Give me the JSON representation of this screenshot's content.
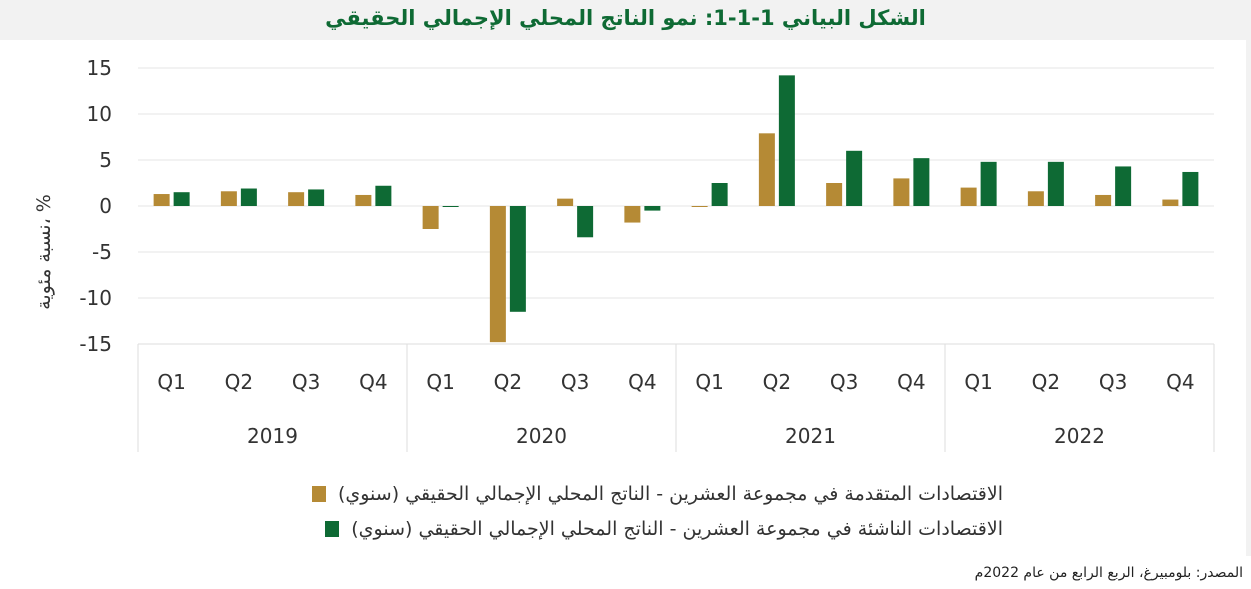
{
  "title": "الشكل البياني 1-1-1: نمو الناتج المحلي الإجمالي الحقيقي",
  "source": "المصدر: بلومبيرغ، الربع الرابع من عام 2022م",
  "colors": {
    "advanced": "#b58a35",
    "emerging": "#0e6a34",
    "title": "#0e6a34"
  },
  "chart_data": {
    "type": "bar",
    "ylabel": "نسبة مئوية، %",
    "ylim": [
      -15,
      15
    ],
    "yticks": [
      15,
      10,
      5,
      0,
      -5,
      -10,
      -15
    ],
    "categories": [
      "Q1",
      "Q2",
      "Q3",
      "Q4",
      "Q1",
      "Q2",
      "Q3",
      "Q4",
      "Q1",
      "Q2",
      "Q3",
      "Q4",
      "Q1",
      "Q2",
      "Q3",
      "Q4"
    ],
    "years": [
      "2019",
      "2020",
      "2021",
      "2022"
    ],
    "series": [
      {
        "name": "الاقتصادات المتقدمة في مجموعة العشرين - الناتج المحلي الإجمالي الحقيقي (سنوي)",
        "values": [
          1.3,
          1.6,
          1.5,
          1.2,
          -2.5,
          -14.8,
          0.8,
          -1.8,
          -0.1,
          7.9,
          2.5,
          3.0,
          2.0,
          1.6,
          1.2,
          0.7
        ]
      },
      {
        "name": "الاقتصادات الناشئة في مجموعة العشرين - الناتج المحلي الإجمالي الحقيقي (سنوي)",
        "values": [
          1.5,
          1.9,
          1.8,
          2.2,
          -0.1,
          -11.5,
          -3.4,
          -0.5,
          2.5,
          14.2,
          6.0,
          5.2,
          4.8,
          4.8,
          4.3,
          3.7
        ]
      }
    ]
  }
}
